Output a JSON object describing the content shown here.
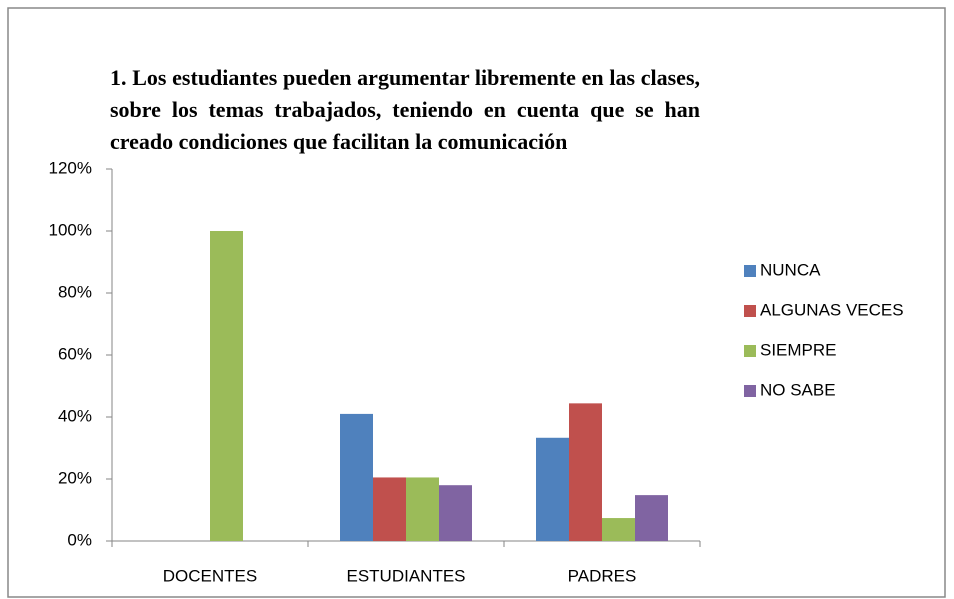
{
  "chart_data": {
    "type": "bar",
    "title": "1. Los estudiantes pueden argumentar libremente en las clases, sobre los temas trabajados, teniendo en cuenta que se han creado condiciones que facilitan la comunicación",
    "categories": [
      "DOCENTES",
      "ESTUDIANTES",
      "PADRES"
    ],
    "series": [
      {
        "name": "NUNCA",
        "color": "#4f81bd",
        "values": [
          0,
          41,
          33.3
        ]
      },
      {
        "name": "ALGUNAS VECES",
        "color": "#c0504d",
        "values": [
          0,
          20.5,
          44.4
        ]
      },
      {
        "name": "SIEMPRE",
        "color": "#9bbb59",
        "values": [
          100,
          20.5,
          7.4
        ]
      },
      {
        "name": "NO SABE",
        "color": "#8064a2",
        "values": [
          0,
          18,
          14.8
        ]
      }
    ],
    "ylim": [
      0,
      120
    ],
    "yticks": [
      {
        "value": 0,
        "label": "0%"
      },
      {
        "value": 20,
        "label": "20%"
      },
      {
        "value": 40,
        "label": "40%"
      },
      {
        "value": 60,
        "label": "60%"
      },
      {
        "value": 80,
        "label": "80%"
      },
      {
        "value": 100,
        "label": "100%"
      },
      {
        "value": 120,
        "label": "120%"
      }
    ],
    "legend": "right"
  }
}
